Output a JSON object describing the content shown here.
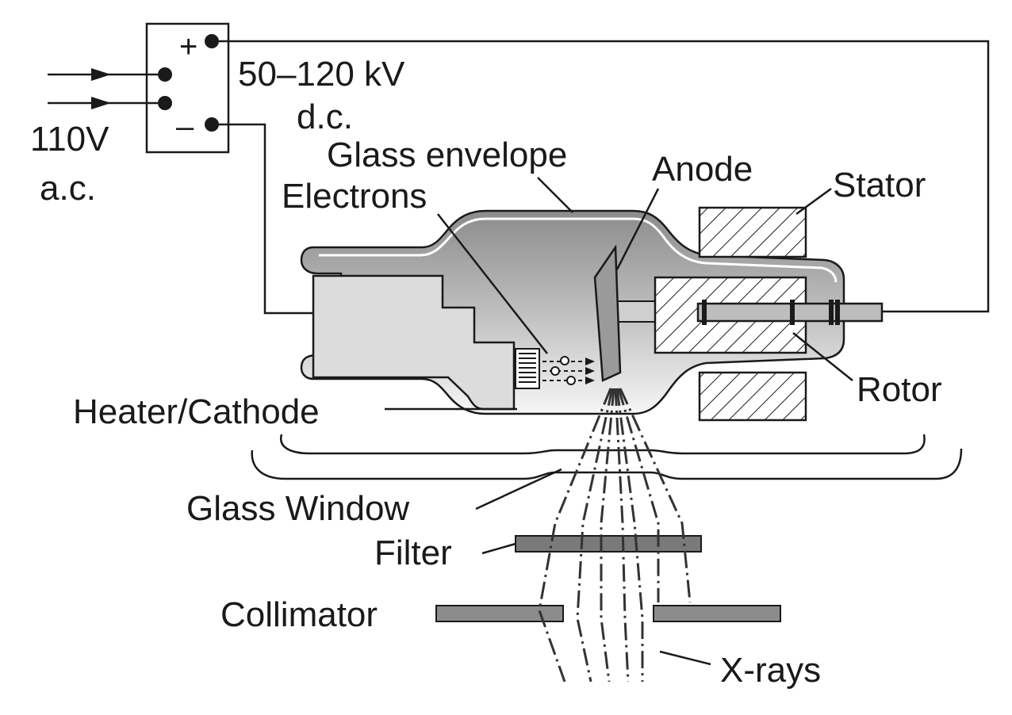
{
  "labels": {
    "input_voltage": "110V",
    "input_type": "a.c.",
    "output_voltage": "50–120 kV",
    "output_type": "d.c.",
    "plus": "+",
    "minus": "–",
    "glass_envelope": "Glass envelope",
    "electrons": "Electrons",
    "anode": "Anode",
    "stator": "Stator",
    "rotor": "Rotor",
    "heater_cathode": "Heater/Cathode",
    "glass_window": "Glass Window",
    "filter": "Filter",
    "collimator": "Collimator",
    "x_rays": "X-rays"
  },
  "colors": {
    "line": "#1a1a1a",
    "tube_dark": "#8a8a8a",
    "tube_light": "#f4f4f4",
    "cathode_fill": "#dcdcdc",
    "filter_fill": "#7a7a7a",
    "collimator_fill": "#8c8c8c"
  }
}
